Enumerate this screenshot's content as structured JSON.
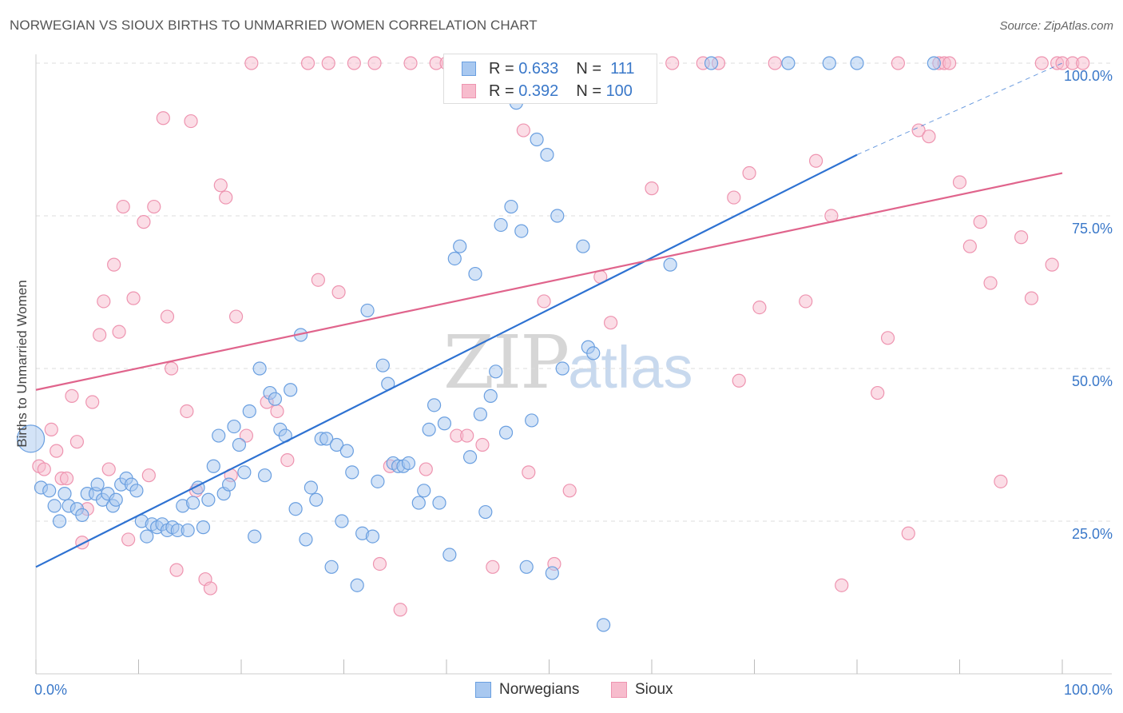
{
  "title": "NORWEGIAN VS SIOUX BIRTHS TO UNMARRIED WOMEN CORRELATION CHART",
  "source": "Source: ZipAtlas.com",
  "watermark": {
    "part_a": "ZIP",
    "part_b": "atlas"
  },
  "colors": {
    "blue_fill": "#a8c8f0",
    "blue_stroke": "#6a9fe0",
    "blue_line": "#2e72d2",
    "pink_fill": "#f7bccd",
    "pink_stroke": "#ee94b0",
    "pink_line": "#e0648c",
    "tick_text": "#3a78c9",
    "grid": "#dcdcdc"
  },
  "legend": {
    "rows": [
      {
        "r_label": "R =",
        "r_value": "0.633",
        "n_label": "N =",
        "n_value": "111"
      },
      {
        "r_label": "R =",
        "r_value": "0.392",
        "n_label": "N =",
        "n_value": "100"
      }
    ]
  },
  "bottom_legend": {
    "series_a": "Norwegians",
    "series_b": "Sioux"
  },
  "chart_data": {
    "type": "scatter",
    "title": "NORWEGIAN VS SIOUX BIRTHS TO UNMARRIED WOMEN CORRELATION CHART",
    "xlabel": "",
    "ylabel": "Births to Unmarried Women",
    "xlim": [
      0,
      100
    ],
    "ylim": [
      0,
      100
    ],
    "x_tick_labels": [
      "0.0%",
      "100.0%"
    ],
    "y_tick_labels": [
      "25.0%",
      "50.0%",
      "75.0%",
      "100.0%"
    ],
    "y_ticks": [
      25,
      50,
      75,
      100
    ],
    "grid": true,
    "legend_position": "top-center",
    "series": [
      {
        "name": "Norwegians",
        "R": 0.633,
        "N": 111,
        "trend": {
          "x": [
            0,
            80
          ],
          "y": [
            17.5,
            85
          ],
          "dashed_to": [
            100,
            100
          ]
        },
        "points": [
          [
            -0.5,
            38.5
          ],
          [
            0.5,
            30.5
          ],
          [
            1.3,
            30
          ],
          [
            1.8,
            27.5
          ],
          [
            2.3,
            25
          ],
          [
            2.8,
            29.5
          ],
          [
            3.2,
            27.5
          ],
          [
            4,
            27
          ],
          [
            4.5,
            26
          ],
          [
            5,
            29.5
          ],
          [
            5.8,
            29.5
          ],
          [
            6,
            31
          ],
          [
            6.5,
            28.5
          ],
          [
            7,
            29.5
          ],
          [
            7.5,
            27.5
          ],
          [
            7.8,
            28.5
          ],
          [
            8.3,
            31
          ],
          [
            8.8,
            32
          ],
          [
            9.3,
            31
          ],
          [
            9.8,
            30
          ],
          [
            10.3,
            25
          ],
          [
            10.8,
            22.5
          ],
          [
            11.3,
            24.5
          ],
          [
            11.8,
            24
          ],
          [
            12.3,
            24.5
          ],
          [
            12.8,
            23.5
          ],
          [
            13.3,
            24
          ],
          [
            13.8,
            23.5
          ],
          [
            14.3,
            27.5
          ],
          [
            14.8,
            23.5
          ],
          [
            15.3,
            28
          ],
          [
            15.8,
            30.5
          ],
          [
            16.3,
            24
          ],
          [
            16.8,
            28.5
          ],
          [
            17.3,
            34
          ],
          [
            17.8,
            39
          ],
          [
            18.3,
            29.5
          ],
          [
            18.8,
            31
          ],
          [
            19.3,
            40.5
          ],
          [
            19.8,
            37.5
          ],
          [
            20.3,
            33
          ],
          [
            20.8,
            43
          ],
          [
            21.3,
            22.5
          ],
          [
            21.8,
            50
          ],
          [
            22.3,
            32.5
          ],
          [
            22.8,
            46
          ],
          [
            23.3,
            45
          ],
          [
            23.8,
            40
          ],
          [
            24.3,
            39
          ],
          [
            24.8,
            46.5
          ],
          [
            25.3,
            27
          ],
          [
            25.8,
            55.5
          ],
          [
            26.3,
            22
          ],
          [
            26.8,
            30.5
          ],
          [
            27.3,
            28.5
          ],
          [
            27.8,
            38.5
          ],
          [
            28.3,
            38.5
          ],
          [
            28.8,
            17.5
          ],
          [
            29.3,
            37.5
          ],
          [
            29.8,
            25
          ],
          [
            30.3,
            36.5
          ],
          [
            30.8,
            33
          ],
          [
            31.3,
            14.5
          ],
          [
            31.8,
            23
          ],
          [
            32.3,
            59.5
          ],
          [
            32.8,
            22.5
          ],
          [
            33.3,
            31.5
          ],
          [
            33.8,
            50.5
          ],
          [
            34.3,
            47.5
          ],
          [
            34.8,
            34.5
          ],
          [
            35.3,
            34
          ],
          [
            35.8,
            34
          ],
          [
            36.3,
            34.5
          ],
          [
            37.3,
            28
          ],
          [
            37.8,
            30
          ],
          [
            38.3,
            40
          ],
          [
            38.8,
            44
          ],
          [
            39.3,
            28
          ],
          [
            39.8,
            41
          ],
          [
            40.3,
            19.5
          ],
          [
            40.8,
            68
          ],
          [
            41.3,
            70
          ],
          [
            42.3,
            35.5
          ],
          [
            42.8,
            65.5
          ],
          [
            43.3,
            42.5
          ],
          [
            43.8,
            26.5
          ],
          [
            44.3,
            45.5
          ],
          [
            44.8,
            49.5
          ],
          [
            45.3,
            73.5
          ],
          [
            45.8,
            39.5
          ],
          [
            46.3,
            76.5
          ],
          [
            46.8,
            93.5
          ],
          [
            47.3,
            72.5
          ],
          [
            47.8,
            17.5
          ],
          [
            48.3,
            41.5
          ],
          [
            48.8,
            87.5
          ],
          [
            49.8,
            85
          ],
          [
            50.3,
            16.5
          ],
          [
            50.8,
            75
          ],
          [
            51.3,
            50
          ],
          [
            53.3,
            70
          ],
          [
            53.8,
            53.5
          ],
          [
            54.3,
            52.5
          ],
          [
            55.3,
            8
          ],
          [
            57.3,
            100
          ],
          [
            61.8,
            67
          ],
          [
            65.8,
            100
          ],
          [
            73.3,
            100
          ],
          [
            77.3,
            100
          ],
          [
            80,
            100
          ],
          [
            87.5,
            100
          ]
        ]
      },
      {
        "name": "Sioux",
        "R": 0.392,
        "N": 100,
        "trend": {
          "x": [
            0,
            100
          ],
          "y": [
            46.5,
            82
          ]
        },
        "points": [
          [
            0.3,
            34
          ],
          [
            0.8,
            33.5
          ],
          [
            1.5,
            40
          ],
          [
            2,
            36.5
          ],
          [
            2.5,
            32
          ],
          [
            3,
            32
          ],
          [
            3.5,
            45.5
          ],
          [
            4,
            38
          ],
          [
            4.5,
            21.5
          ],
          [
            5,
            27
          ],
          [
            5.5,
            44.5
          ],
          [
            6.2,
            55.5
          ],
          [
            6.6,
            61
          ],
          [
            7.1,
            33.5
          ],
          [
            7.6,
            67
          ],
          [
            8.1,
            56
          ],
          [
            8.5,
            76.5
          ],
          [
            9,
            22
          ],
          [
            9.5,
            61.5
          ],
          [
            10.5,
            74
          ],
          [
            11,
            32.5
          ],
          [
            11.5,
            76.5
          ],
          [
            12.4,
            91
          ],
          [
            12.8,
            58.5
          ],
          [
            13.2,
            50
          ],
          [
            13.7,
            17
          ],
          [
            14.7,
            43
          ],
          [
            15.1,
            90.5
          ],
          [
            15.6,
            30
          ],
          [
            16.5,
            15.5
          ],
          [
            17,
            14
          ],
          [
            18,
            80
          ],
          [
            18.5,
            78
          ],
          [
            19,
            32.5
          ],
          [
            19.5,
            58.5
          ],
          [
            20.5,
            39
          ],
          [
            21,
            100
          ],
          [
            22.5,
            44.5
          ],
          [
            23.5,
            43
          ],
          [
            24.5,
            35
          ],
          [
            26.5,
            100
          ],
          [
            27.5,
            64.5
          ],
          [
            28.5,
            100
          ],
          [
            29.5,
            62.5
          ],
          [
            31,
            100
          ],
          [
            33,
            100
          ],
          [
            33.5,
            18
          ],
          [
            34.5,
            34
          ],
          [
            35.5,
            10.5
          ],
          [
            36.5,
            100
          ],
          [
            38,
            33.5
          ],
          [
            39,
            100
          ],
          [
            40,
            100
          ],
          [
            40.5,
            100
          ],
          [
            41,
            39
          ],
          [
            42,
            39
          ],
          [
            43.5,
            37.5
          ],
          [
            44.5,
            17.5
          ],
          [
            47.5,
            89
          ],
          [
            48,
            33
          ],
          [
            49.5,
            61
          ],
          [
            50.5,
            18
          ],
          [
            52,
            30
          ],
          [
            55,
            65
          ],
          [
            56,
            57.5
          ],
          [
            60,
            79.5
          ],
          [
            62,
            100
          ],
          [
            65,
            100
          ],
          [
            66.5,
            100
          ],
          [
            68,
            78
          ],
          [
            68.5,
            48
          ],
          [
            69.5,
            82
          ],
          [
            70.5,
            60
          ],
          [
            72,
            100
          ],
          [
            75,
            61
          ],
          [
            76,
            84
          ],
          [
            77.5,
            75
          ],
          [
            78.5,
            14.5
          ],
          [
            82,
            46
          ],
          [
            83,
            55
          ],
          [
            84,
            100
          ],
          [
            85,
            23
          ],
          [
            86,
            89
          ],
          [
            87,
            88
          ],
          [
            88,
            100
          ],
          [
            88.5,
            100
          ],
          [
            89,
            100
          ],
          [
            90,
            80.5
          ],
          [
            91,
            70
          ],
          [
            92,
            74
          ],
          [
            93,
            64
          ],
          [
            94,
            31.5
          ],
          [
            96,
            71.5
          ],
          [
            97,
            61.5
          ],
          [
            98,
            100
          ],
          [
            99,
            67
          ],
          [
            99.5,
            100
          ],
          [
            100,
            100
          ],
          [
            101,
            100
          ],
          [
            102,
            100
          ]
        ]
      }
    ]
  }
}
